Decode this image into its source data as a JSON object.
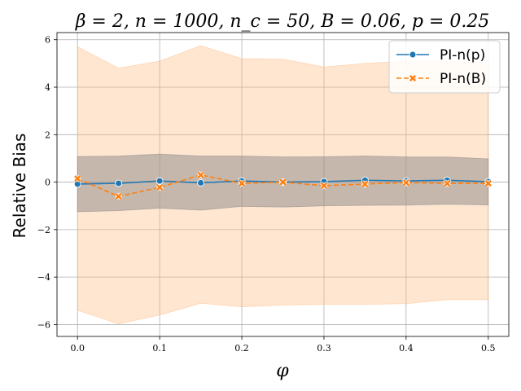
{
  "chart_data": {
    "type": "line",
    "title": "β = 2, n = 1000, n_c = 50, B = 0.06, p = 0.25",
    "xlabel": "φ",
    "ylabel": "Relative Bias",
    "xlim": [
      -0.025,
      0.525
    ],
    "ylim": [
      -6.5,
      6.3
    ],
    "x": [
      0.0,
      0.05,
      0.1,
      0.15,
      0.2,
      0.25,
      0.3,
      0.35,
      0.4,
      0.45,
      0.5
    ],
    "x_ticks": [
      0.0,
      0.1,
      0.2,
      0.3,
      0.4,
      0.5
    ],
    "x_tick_labels": [
      "0.0",
      "0.1",
      "0.2",
      "0.3",
      "0.4",
      "0.5"
    ],
    "y_ticks": [
      -6,
      -4,
      -2,
      0,
      2,
      4,
      6
    ],
    "y_tick_labels": [
      "−6",
      "−4",
      "−2",
      "0",
      "2",
      "4",
      "6"
    ],
    "grid": true,
    "legend_position": "top-right",
    "series": [
      {
        "name": "PI-n(p)",
        "color": "#1f77b4",
        "marker": "circle",
        "line_style": "solid",
        "values": [
          -0.08,
          -0.05,
          0.05,
          -0.03,
          0.05,
          0.0,
          0.02,
          0.08,
          0.05,
          0.08,
          0.02
        ],
        "band_lower": [
          -1.25,
          -1.2,
          -1.1,
          -1.18,
          -1.02,
          -1.05,
          -1.0,
          -0.98,
          -0.97,
          -0.93,
          -0.96
        ],
        "band_upper": [
          1.08,
          1.1,
          1.18,
          1.1,
          1.1,
          1.06,
          1.07,
          1.1,
          1.06,
          1.06,
          0.98
        ],
        "band_color": "#7f7f7f"
      },
      {
        "name": "PI-n(B)",
        "color": "#ff7f0e",
        "marker": "x",
        "line_style": "dashed",
        "values": [
          0.15,
          -0.6,
          -0.22,
          0.3,
          -0.05,
          0.0,
          -0.15,
          -0.08,
          -0.02,
          -0.05,
          -0.05
        ],
        "band_lower": [
          -5.4,
          -5.97,
          -5.6,
          -5.1,
          -5.25,
          -5.18,
          -5.15,
          -5.15,
          -5.12,
          -4.95,
          -4.95
        ],
        "band_upper": [
          5.7,
          4.8,
          5.1,
          5.75,
          5.2,
          5.18,
          4.85,
          5.0,
          5.1,
          5.1,
          5.0
        ],
        "band_color": "#ffb87a"
      }
    ]
  }
}
